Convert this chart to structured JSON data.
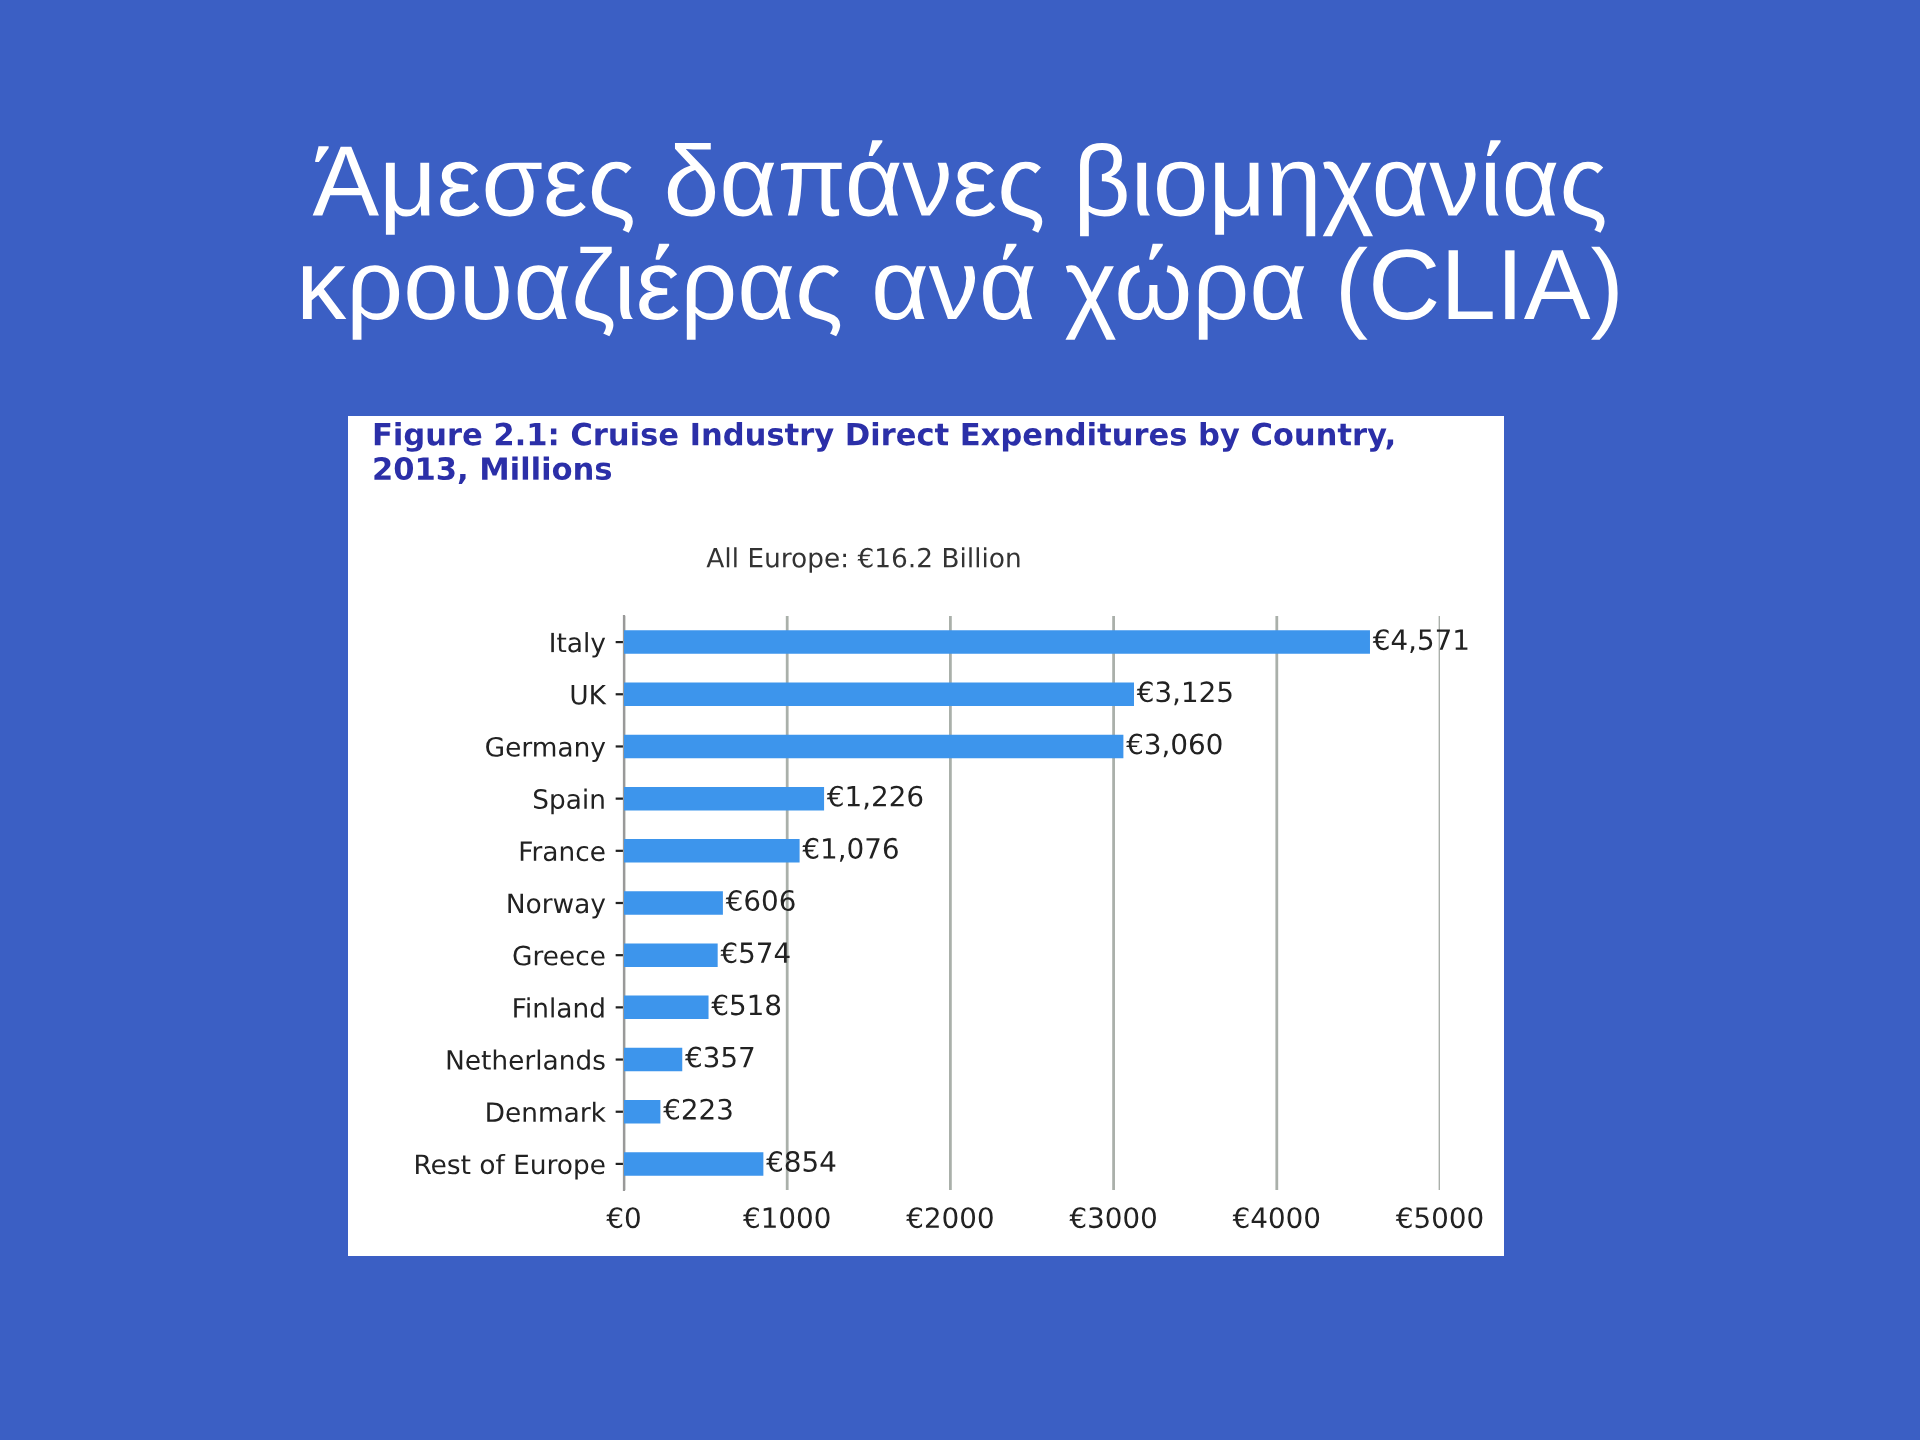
{
  "chart_data": {
    "type": "bar",
    "orientation": "horizontal",
    "title": "Άμεσες δαπάνες βιομηχανίας\nκρουαζιέρας ανά χώρα (CLIA)",
    "subtitle": "Figure 2.1: Cruise Industry Direct Expenditures by Country,\n2013, Millions",
    "annotations": [
      "All Europe: €16.2 Billion"
    ],
    "categories": [
      "Italy",
      "UK",
      "Germany",
      "Spain",
      "France",
      "Norway",
      "Greece",
      "Finland",
      "Netherlands",
      "Denmark",
      "Rest of Europe"
    ],
    "values": [
      4571,
      3125,
      3060,
      1226,
      1076,
      606,
      574,
      518,
      357,
      223,
      854
    ],
    "value_labels": [
      "€4,571",
      "€3,125",
      "€3,060",
      "€1,226",
      "€1,076",
      "€606",
      "€574",
      "€518",
      "€357",
      "€223",
      "€854"
    ],
    "color": "#3d95ec",
    "xlim": [
      0,
      5000
    ],
    "xticks": [
      {
        "value": 0,
        "label": "€0"
      },
      {
        "value": 1000,
        "label": "€1000"
      },
      {
        "value": 2000,
        "label": "€2000"
      },
      {
        "value": 3000,
        "label": "€3000"
      },
      {
        "value": 4000,
        "label": "€4000"
      },
      {
        "value": 5000,
        "label": "€5000"
      }
    ],
    "grid": "x"
  }
}
